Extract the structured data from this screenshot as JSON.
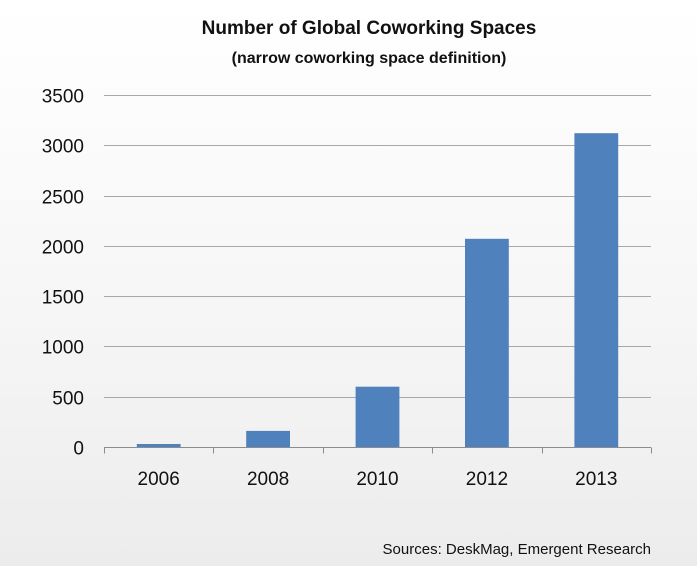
{
  "chart_data": {
    "type": "bar",
    "title": "Number of Global Coworking Spaces",
    "subtitle": "(narrow coworking space definition)",
    "categories": [
      "2006",
      "2008",
      "2010",
      "2012",
      "2013"
    ],
    "values": [
      30,
      160,
      600,
      2070,
      3120
    ],
    "ylim": [
      0,
      3500
    ],
    "yticks": [
      0,
      500,
      1000,
      1500,
      2000,
      2500,
      3000,
      3500
    ],
    "ytick_labels": [
      "0",
      "500",
      "1000",
      "1500",
      "2000",
      "2500",
      "3000",
      "3500"
    ],
    "xlabel": "",
    "ylabel": "",
    "grid": true,
    "bar_color": "#4f81bd",
    "source": "Sources: DeskMag, Emergent Research"
  }
}
